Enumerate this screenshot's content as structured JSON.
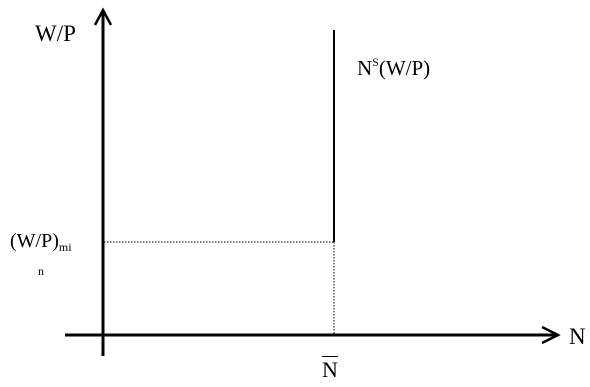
{
  "diagram": {
    "y_axis_label": "W/P",
    "x_axis_label": "N",
    "supply_curve_label": {
      "main": "N",
      "superscript": "S",
      "suffix": "(W/P)"
    },
    "min_wage_label": {
      "main": "(W/P)",
      "subscript": "mi",
      "wrapped": "n"
    },
    "labor_level_label": "N"
  }
}
